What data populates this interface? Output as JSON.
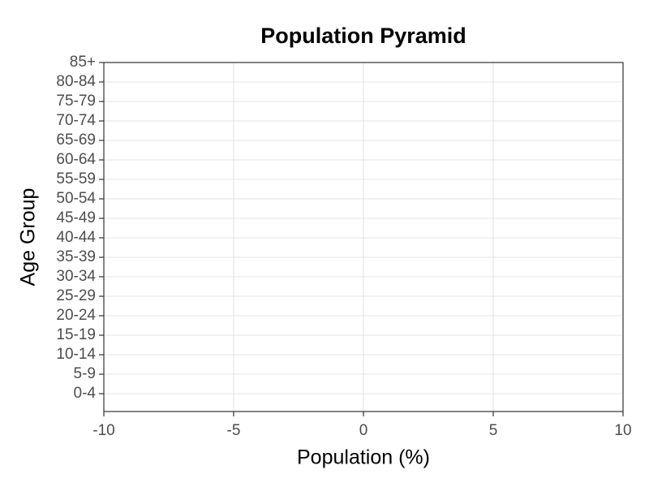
{
  "chart_data": {
    "type": "bar",
    "orientation": "horizontal",
    "title": "Population Pyramid",
    "x_label": "Population (%)",
    "y_label": "Age Group",
    "categories": [
      "0-4",
      "5-9",
      "10-14",
      "15-19",
      "20-24",
      "25-29",
      "30-34",
      "35-39",
      "40-44",
      "45-49",
      "50-54",
      "55-59",
      "60-64",
      "65-69",
      "70-74",
      "75-79",
      "80-84",
      "85+"
    ],
    "xlim": [
      -10,
      10
    ],
    "xticks": [
      -10,
      -5,
      0,
      5,
      10
    ],
    "grid": true
  }
}
